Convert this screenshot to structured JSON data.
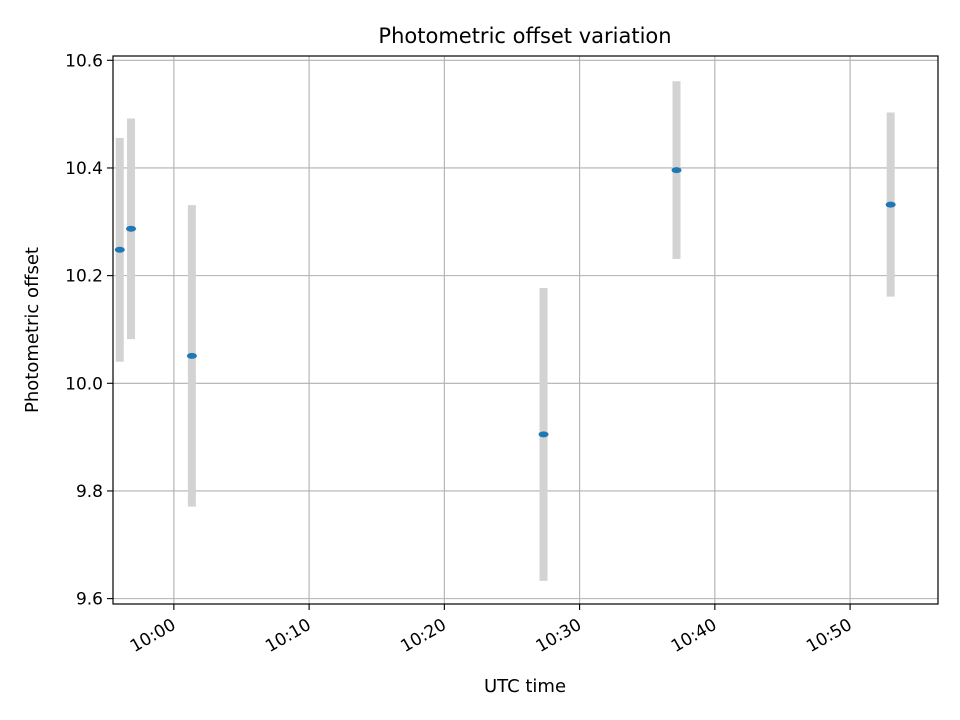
{
  "chart_data": {
    "type": "scatter",
    "title": "Photometric offset variation",
    "xlabel": "UTC time",
    "ylabel": "Photometric offset",
    "x_type": "time",
    "xlim": [
      "09:55:30",
      "10:56:30"
    ],
    "ylim": [
      9.59,
      10.608
    ],
    "x_ticks": [
      "10:00",
      "10:10",
      "10:20",
      "10:30",
      "10:40",
      "10:50"
    ],
    "y_ticks": [
      "9.6",
      "9.8",
      "10.0",
      "10.2",
      "10.4",
      "10.6"
    ],
    "grid": true,
    "series": [
      {
        "marker": "dot",
        "color": "#1f77b4",
        "errorbar_color": "#d3d3d3",
        "points": [
          {
            "x": "09:56:00",
            "y": 10.248,
            "err": 0.208
          },
          {
            "x": "09:56:50",
            "y": 10.287,
            "err": 0.205
          },
          {
            "x": "10:01:20",
            "y": 10.051,
            "err": 0.28
          },
          {
            "x": "10:27:20",
            "y": 9.905,
            "err": 0.272
          },
          {
            "x": "10:37:10",
            "y": 10.396,
            "err": 0.165
          },
          {
            "x": "10:53:00",
            "y": 10.332,
            "err": 0.171
          }
        ]
      }
    ]
  }
}
